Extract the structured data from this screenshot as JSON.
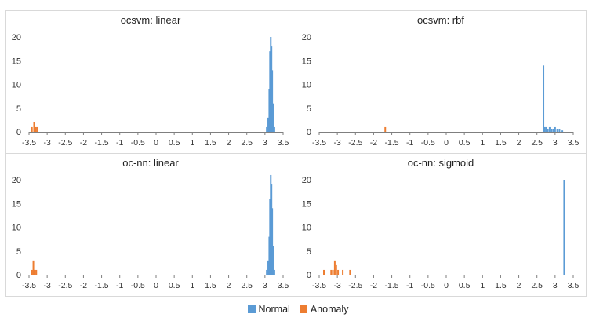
{
  "chart_data": [
    {
      "type": "bar",
      "title": "ocsvm: linear",
      "ylim": [
        0,
        20
      ],
      "yticks": [
        "0",
        "5",
        "10",
        "15",
        "20"
      ],
      "xlim": [
        -3.5,
        3.5
      ],
      "xticks": [
        "-3.5",
        "-3",
        "-2.5",
        "-2",
        "-1.5",
        "-1",
        "-0.5",
        "0",
        "0.5",
        "1",
        "1.5",
        "2",
        "2.5",
        "3",
        "3.5"
      ],
      "series": [
        {
          "name": "Normal",
          "color": "#5b9bd5",
          "x": [
            3.05,
            3.09,
            3.12,
            3.14,
            3.16,
            3.18,
            3.2,
            3.22,
            3.24,
            3.26
          ],
          "values": [
            1,
            3,
            9,
            17,
            20,
            18,
            13,
            6,
            3,
            1
          ]
        },
        {
          "name": "Anomaly",
          "color": "#ed7d31",
          "x": [
            -3.42,
            -3.36,
            -3.32,
            -3.28
          ],
          "values": [
            1,
            2,
            1,
            1
          ]
        }
      ]
    },
    {
      "type": "bar",
      "title": "ocsvm: rbf",
      "ylim": [
        0,
        20
      ],
      "yticks": [
        "0",
        "5",
        "10",
        "15",
        "20"
      ],
      "xlim": [
        -3.5,
        3.5
      ],
      "xticks": [
        "-3.5",
        "-3",
        "-2.5",
        "-2",
        "-1.5",
        "-1",
        "-0.5",
        "0",
        "0.5",
        "1",
        "1.5",
        "2",
        "2.5",
        "3",
        "3.5"
      ],
      "series": [
        {
          "name": "Normal",
          "color": "#5b9bd5",
          "x": [
            2.68,
            2.72,
            2.76,
            2.8,
            2.85,
            2.9,
            2.95,
            3.0,
            3.06,
            3.12,
            3.2
          ],
          "values": [
            14,
            1,
            1,
            0.5,
            1,
            0.5,
            0.5,
            1,
            0.5,
            0.5,
            0.3
          ]
        },
        {
          "name": "Anomaly",
          "color": "#ed7d31",
          "x": [
            -1.68
          ],
          "values": [
            1
          ]
        }
      ]
    },
    {
      "type": "bar",
      "title": "oc-nn: linear",
      "ylim": [
        0,
        20
      ],
      "yticks": [
        "0",
        "5",
        "10",
        "15",
        "20"
      ],
      "xlim": [
        -3.5,
        3.5
      ],
      "xticks": [
        "-3.5",
        "-3",
        "-2.5",
        "-2",
        "-1.5",
        "-1",
        "-0.5",
        "0",
        "0.5",
        "1",
        "1.5",
        "2",
        "2.5",
        "3",
        "3.5"
      ],
      "series": [
        {
          "name": "Normal",
          "color": "#5b9bd5",
          "x": [
            3.05,
            3.09,
            3.12,
            3.14,
            3.16,
            3.18,
            3.2,
            3.22,
            3.24,
            3.26
          ],
          "values": [
            1,
            3,
            8,
            16,
            21,
            19,
            14,
            6,
            3,
            1
          ]
        },
        {
          "name": "Anomaly",
          "color": "#ed7d31",
          "x": [
            -3.42,
            -3.38,
            -3.34,
            -3.3
          ],
          "values": [
            1,
            3,
            1,
            1
          ]
        }
      ]
    },
    {
      "type": "bar",
      "title": "oc-nn: sigmoid",
      "ylim": [
        0,
        20
      ],
      "yticks": [
        "0",
        "5",
        "10",
        "15",
        "20"
      ],
      "xlim": [
        -3.5,
        3.5
      ],
      "xticks": [
        "-3.5",
        "-3",
        "-2.5",
        "-2",
        "-1.5",
        "-1",
        "-0.5",
        "0",
        "0.5",
        "1",
        "1.5",
        "2",
        "2.5",
        "3",
        "3.5"
      ],
      "series": [
        {
          "name": "Normal",
          "color": "#5b9bd5",
          "x": [
            3.25
          ],
          "values": [
            20
          ]
        },
        {
          "name": "Anomaly",
          "color": "#ed7d31",
          "x": [
            -3.37,
            -3.17,
            -3.12,
            -3.07,
            -3.03,
            -2.98,
            -2.85,
            -2.65
          ],
          "values": [
            1,
            1,
            1,
            3,
            2,
            1,
            1,
            1
          ]
        }
      ]
    }
  ],
  "legend": [
    {
      "label": "Normal",
      "color": "#5b9bd5"
    },
    {
      "label": "Anomaly",
      "color": "#ed7d31"
    }
  ]
}
